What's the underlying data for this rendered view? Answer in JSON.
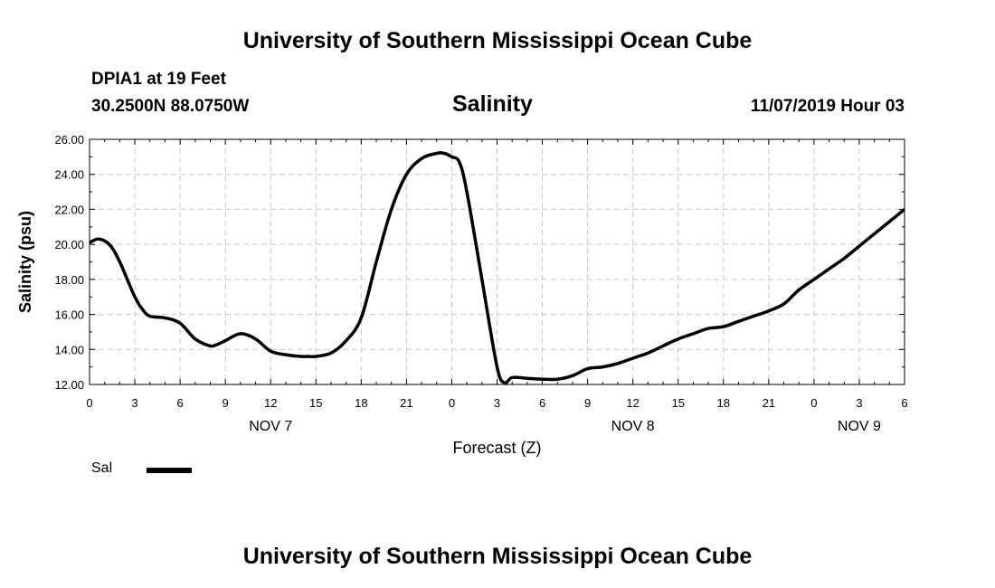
{
  "page": {
    "title_top": "University of Southern Mississippi Ocean Cube",
    "title_bottom": "University of Southern Mississippi Ocean Cube",
    "station": "DPIA1 at 19 Feet",
    "location": "30.2500N 88.0750W",
    "variable": "Salinity",
    "timestamp": "11/07/2019 Hour 03"
  },
  "legend": {
    "label": "Sal"
  },
  "chart_data": {
    "type": "line",
    "title": "Salinity",
    "xlabel": "Forecast (Z)",
    "ylabel": "Salinity (psu)",
    "xlim": [
      0,
      54
    ],
    "ylim": [
      12,
      26
    ],
    "y_ticks": [
      "12.00",
      "14.00",
      "16.00",
      "18.00",
      "20.00",
      "22.00",
      "24.00",
      "26.00"
    ],
    "y_tick_values": [
      12,
      14,
      16,
      18,
      20,
      22,
      24,
      26
    ],
    "x_tick_values": [
      0,
      3,
      6,
      9,
      12,
      15,
      18,
      21,
      24,
      27,
      30,
      33,
      36,
      39,
      42,
      45,
      48,
      51,
      54
    ],
    "x_tick_labels": [
      "0",
      "3",
      "6",
      "9",
      "12",
      "15",
      "18",
      "21",
      "0",
      "3",
      "6",
      "9",
      "12",
      "15",
      "18",
      "21",
      "0",
      "3",
      "6"
    ],
    "day_labels": [
      {
        "label": "NOV 7",
        "hour": 12
      },
      {
        "label": "NOV 8",
        "hour": 36
      },
      {
        "label": "NOV 9",
        "hour": 51
      }
    ],
    "grid": true,
    "series": [
      {
        "name": "Sal",
        "x": [
          0,
          0.5,
          1,
          1.5,
          2,
          2.5,
          3,
          3.5,
          4,
          5,
          6,
          7,
          8,
          8.5,
          9,
          10,
          11,
          12,
          13,
          14,
          14.5,
          15,
          16,
          17,
          18,
          19,
          20,
          21,
          22,
          23,
          23.5,
          24,
          24.5,
          25,
          26,
          27,
          27.5,
          28,
          29,
          30,
          31,
          32,
          33,
          34,
          35,
          36,
          37,
          38,
          39,
          40,
          41,
          42,
          43,
          44,
          45,
          46,
          47,
          48,
          49,
          50,
          51,
          52,
          53,
          54
        ],
        "values": [
          20.1,
          20.3,
          20.2,
          19.8,
          19.0,
          18.0,
          17.0,
          16.3,
          15.9,
          15.8,
          15.5,
          14.6,
          14.2,
          14.3,
          14.5,
          14.9,
          14.6,
          13.9,
          13.7,
          13.6,
          13.6,
          13.6,
          13.8,
          14.5,
          15.8,
          19.0,
          22.0,
          24.0,
          24.9,
          25.2,
          25.2,
          25.0,
          24.7,
          23.0,
          18.0,
          13.0,
          12.1,
          12.4,
          12.35,
          12.3,
          12.3,
          12.5,
          12.9,
          13.0,
          13.2,
          13.5,
          13.8,
          14.2,
          14.6,
          14.9,
          15.2,
          15.3,
          15.6,
          15.9,
          16.2,
          16.6,
          17.4,
          18.0,
          18.6,
          19.2,
          19.9,
          20.6,
          21.3,
          22.0
        ]
      }
    ]
  }
}
